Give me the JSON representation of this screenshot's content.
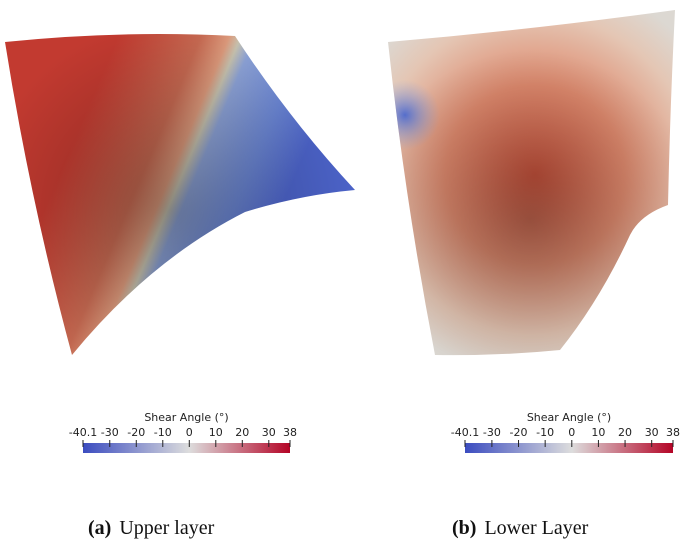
{
  "panels": [
    {
      "colorbar": {
        "title": "Shear Angle (°)",
        "range": [
          -40.1,
          38
        ],
        "ticks": [
          -40.1,
          -30,
          -20,
          -10,
          0,
          10,
          20,
          30,
          38
        ]
      },
      "caption": {
        "label": "(a)",
        "text": "Upper layer"
      }
    },
    {
      "colorbar": {
        "title": "Shear Angle (°)",
        "range": [
          -40.1,
          38
        ],
        "ticks": [
          -40.1,
          -30,
          -20,
          -10,
          0,
          10,
          20,
          30,
          38
        ]
      },
      "caption": {
        "label": "(b)",
        "text": "Lower Layer"
      }
    }
  ]
}
